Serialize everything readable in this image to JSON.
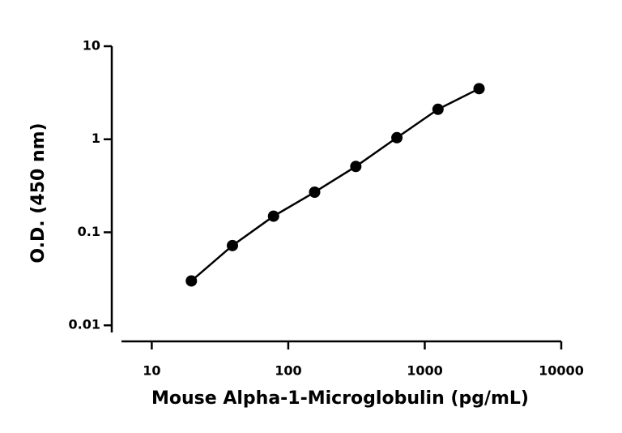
{
  "chart_data": {
    "type": "line",
    "x_label": "Mouse Alpha-1-Microglobulin (pg/mL)",
    "y_label": "O.D. (450 nm)",
    "x": [
      19.5,
      39,
      78,
      156,
      312.5,
      625,
      1250,
      2500
    ],
    "series": [
      {
        "color": "#000000",
        "values": [
          0.03,
          0.072,
          0.149,
          0.27,
          0.51,
          1.04,
          2.1,
          3.5
        ]
      }
    ],
    "xlim": [
      6,
      10000
    ],
    "ylim": [
      0.007,
      10
    ],
    "xticks": [
      10,
      100,
      1000,
      10000
    ],
    "yticks": [
      0.01,
      0.1,
      1,
      10
    ],
    "xscale": "log",
    "yscale": "log",
    "grid": false,
    "markers": true
  }
}
